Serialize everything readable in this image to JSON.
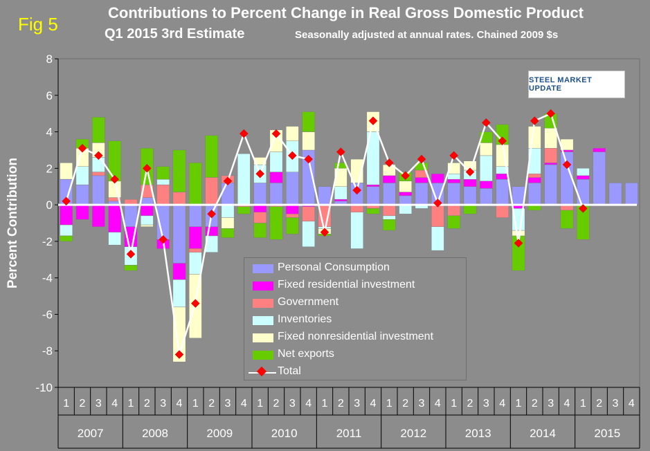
{
  "header": {
    "fig_label": "Fig 5",
    "title": "Contributions to Percent Change in Real Gross Domestic Product",
    "title2": "Q1 2015 3rd Estimate",
    "subtitle": "Seasonally adjusted at annual rates. Chained 2009 $s",
    "logo_text": "STEEL MARKET UPDATE"
  },
  "chart_data": {
    "type": "bar",
    "stacked": true,
    "ylabel": "Percent Contribution",
    "ylim": [
      -10,
      8
    ],
    "yticks": [
      -10,
      -8,
      -6,
      -4,
      -2,
      0,
      2,
      4,
      6,
      8
    ],
    "grid": false,
    "legend_position": "center",
    "categories": [
      "1",
      "2",
      "3",
      "4",
      "1",
      "2",
      "3",
      "4",
      "1",
      "2",
      "3",
      "4",
      "1",
      "2",
      "3",
      "4",
      "1",
      "2",
      "3",
      "4",
      "1",
      "2",
      "3",
      "4",
      "1",
      "2",
      "3",
      "4",
      "1",
      "2",
      "3",
      "4",
      "1",
      "2",
      "3",
      "4"
    ],
    "years": [
      "2007",
      "2008",
      "2009",
      "2010",
      "2011",
      "2012",
      "2013",
      "2014",
      "2015"
    ],
    "colors": {
      "Personal Consumption": "#9999ff",
      "Fixed residential investment": "#ff00ff",
      "Government": "#ff8080",
      "Inventories": "#ccffff",
      "Fixed nonresidential investment": "#ffffcc",
      "Net exports": "#66cc00",
      "Total": "#ff0000"
    },
    "series": [
      {
        "name": "Personal Consumption",
        "values": [
          1.4,
          1.1,
          1.6,
          0.2,
          -1.2,
          0.4,
          -1.9,
          -3.2,
          -1.2,
          -1.2,
          1.2,
          0.0,
          1.2,
          1.2,
          1.8,
          3.0,
          1.0,
          0.2,
          1.2,
          1.0,
          1.2,
          0.5,
          1.2,
          1.2,
          1.2,
          1.0,
          0.9,
          1.4,
          1.0,
          1.2,
          2.2,
          2.9,
          1.4,
          2.9,
          1.2,
          1.2
        ]
      },
      {
        "name": "Fixed residential investment",
        "values": [
          -1.1,
          -0.8,
          -1.2,
          -1.5,
          -1.1,
          -0.6,
          -0.5,
          -0.9,
          -1.2,
          -0.5,
          0.0,
          0.0,
          -0.4,
          0.6,
          -0.5,
          -0.1,
          0.0,
          0.1,
          0.0,
          0.1,
          0.4,
          0.2,
          0.3,
          0.5,
          0.2,
          0.4,
          0.4,
          0.3,
          -0.2,
          0.3,
          0.1,
          0.1,
          0.2,
          0.2,
          0.0,
          0.0
        ]
      },
      {
        "name": "Government",
        "values": [
          0.0,
          0.0,
          0.2,
          0.2,
          0.3,
          0.7,
          1.1,
          0.7,
          -0.2,
          1.5,
          0.4,
          -0.1,
          -0.6,
          -0.1,
          -0.2,
          -0.8,
          -1.2,
          0.0,
          -0.4,
          -0.2,
          -0.6,
          0.0,
          0.4,
          -1.2,
          -0.6,
          0.0,
          0.0,
          -0.7,
          0.0,
          0.2,
          0.8,
          -0.3,
          0.0,
          0.0,
          0.0,
          0.0
        ]
      },
      {
        "name": "Inventories",
        "values": [
          -0.6,
          1.0,
          0.8,
          -0.7,
          -1.0,
          -0.5,
          0.3,
          -1.5,
          -1.2,
          -0.9,
          -0.7,
          2.8,
          1.0,
          1.1,
          1.7,
          -1.4,
          -0.1,
          0.7,
          -2.0,
          2.9,
          -0.2,
          -0.5,
          -0.2,
          -1.3,
          0.3,
          0.5,
          1.4,
          0.4,
          -1.2,
          1.4,
          0.0,
          0.0,
          0.4,
          0.0,
          0.0,
          0.0
        ]
      },
      {
        "name": "Fixed nonresidential investment",
        "values": [
          0.9,
          1.0,
          0.8,
          0.9,
          0.0,
          -0.1,
          0.0,
          -3.0,
          -3.5,
          0.0,
          -0.6,
          0.0,
          0.4,
          1.2,
          0.8,
          1.0,
          -0.3,
          1.0,
          1.3,
          1.1,
          0.6,
          0.6,
          0.0,
          0.0,
          0.6,
          0.5,
          0.7,
          1.2,
          -0.3,
          1.2,
          1.1,
          0.6,
          0.0,
          0.0,
          0.0,
          0.0
        ]
      },
      {
        "name": "Net exports",
        "values": [
          -0.3,
          0.5,
          1.4,
          2.2,
          -0.3,
          2.0,
          0.7,
          2.3,
          2.3,
          2.3,
          -0.5,
          -0.4,
          -0.8,
          -1.8,
          -0.9,
          1.1,
          -0.1,
          0.3,
          0.0,
          -0.3,
          -0.6,
          0.5,
          0.4,
          0.0,
          -0.7,
          -0.5,
          0.6,
          1.1,
          -1.9,
          -0.3,
          0.8,
          -1.0,
          -1.9,
          0.0,
          0.0,
          0.0
        ]
      },
      {
        "name": "Total",
        "values": [
          0.2,
          3.1,
          2.7,
          1.4,
          -2.7,
          2.0,
          -1.9,
          -8.2,
          -5.4,
          -0.5,
          1.3,
          3.9,
          1.7,
          3.9,
          2.7,
          2.5,
          -1.5,
          2.9,
          0.8,
          4.6,
          2.3,
          1.6,
          2.5,
          0.1,
          2.7,
          1.8,
          4.5,
          3.5,
          -2.1,
          4.6,
          5.0,
          2.2,
          -0.2,
          null,
          null,
          null
        ]
      }
    ]
  }
}
